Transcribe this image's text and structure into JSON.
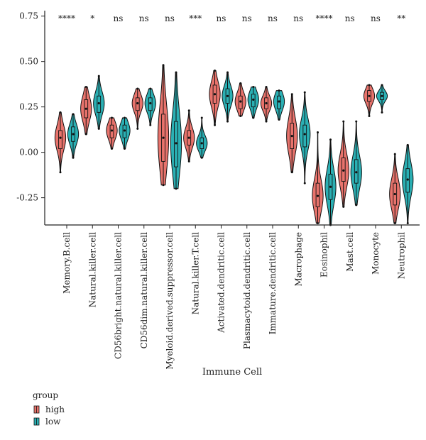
{
  "chart_data": {
    "type": "violin",
    "xlabel": "Immune Cell",
    "ylabel": "",
    "ylim": [
      -0.4,
      0.78
    ],
    "yticks": [
      -0.25,
      0.0,
      0.25,
      0.5,
      0.75
    ],
    "ytick_labels": [
      "-0.25",
      "0.00",
      "0.25",
      "0.50",
      "0.75"
    ],
    "categories": [
      "Memory.B.cell",
      "Natural.killer.cell",
      "CD56bright.natural.killer.cell",
      "CD56dim.natural.killer.cell",
      "Myeloid.derived.suppressor.cell",
      "Natural.killer.T.cell",
      "Activated.dendritic.cell",
      "Plasmacytoid.dendritic.cell",
      "Immature.dendritic.cell",
      "Macrophage",
      "Eosinophil",
      "Mast.cell",
      "Monocyte",
      "Neutrophil"
    ],
    "significance": [
      "****",
      "*",
      "ns",
      "ns",
      "ns",
      "***",
      "ns",
      "ns",
      "ns",
      "ns",
      "****",
      "ns",
      "ns",
      "**"
    ],
    "legend_title": "group",
    "legend_position": "bottom-left",
    "series": [
      {
        "name": "high",
        "color": "#E8736C",
        "min": [
          -0.11,
          0.1,
          0.02,
          0.13,
          -0.18,
          -0.05,
          0.15,
          0.2,
          0.17,
          -0.11,
          -0.39,
          -0.3,
          0.2,
          -0.39
        ],
        "q1": [
          0.02,
          0.19,
          0.08,
          0.23,
          -0.05,
          0.04,
          0.27,
          0.24,
          0.24,
          0.02,
          -0.3,
          -0.16,
          0.28,
          -0.29
        ],
        "median": [
          0.08,
          0.24,
          0.12,
          0.27,
          0.08,
          0.08,
          0.32,
          0.28,
          0.27,
          0.09,
          -0.24,
          -0.1,
          0.31,
          -0.23
        ],
        "q3": [
          0.12,
          0.29,
          0.15,
          0.3,
          0.21,
          0.12,
          0.37,
          0.31,
          0.3,
          0.16,
          -0.17,
          -0.03,
          0.34,
          -0.17
        ],
        "max": [
          0.22,
          0.36,
          0.19,
          0.35,
          0.48,
          0.23,
          0.45,
          0.38,
          0.36,
          0.32,
          0.11,
          0.17,
          0.37,
          -0.01
        ]
      },
      {
        "name": "low",
        "color": "#2BB0B4",
        "min": [
          -0.03,
          0.13,
          0.02,
          0.15,
          -0.2,
          -0.03,
          0.17,
          0.19,
          0.18,
          -0.17,
          -0.4,
          -0.29,
          0.22,
          -0.39
        ],
        "q1": [
          0.06,
          0.22,
          0.08,
          0.23,
          -0.08,
          0.02,
          0.27,
          0.25,
          0.24,
          0.03,
          -0.26,
          -0.17,
          0.29,
          -0.22
        ],
        "median": [
          0.1,
          0.27,
          0.12,
          0.27,
          0.05,
          0.05,
          0.31,
          0.29,
          0.28,
          0.1,
          -0.19,
          -0.11,
          0.31,
          -0.15
        ],
        "q3": [
          0.14,
          0.31,
          0.15,
          0.3,
          0.17,
          0.08,
          0.35,
          0.32,
          0.31,
          0.15,
          -0.12,
          -0.04,
          0.33,
          -0.09
        ],
        "max": [
          0.21,
          0.42,
          0.19,
          0.35,
          0.44,
          0.19,
          0.44,
          0.36,
          0.34,
          0.33,
          0.07,
          0.17,
          0.37,
          0.04
        ]
      }
    ]
  }
}
